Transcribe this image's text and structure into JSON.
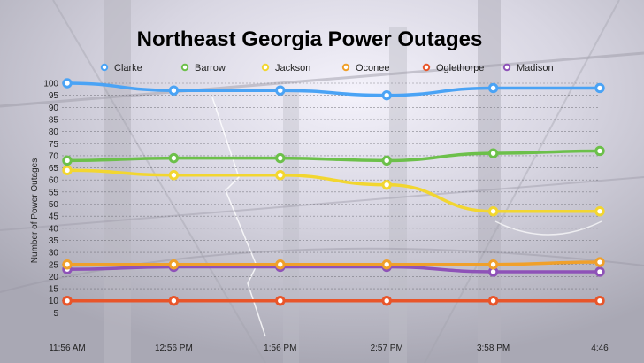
{
  "chart_data": {
    "type": "line",
    "title": "Northeast Georgia Power Outages",
    "xlabel": "",
    "ylabel": "Number of Power Outages",
    "ylim": [
      0,
      100
    ],
    "yticks": [
      5,
      10,
      15,
      20,
      25,
      30,
      35,
      40,
      45,
      50,
      55,
      60,
      65,
      70,
      75,
      80,
      85,
      90,
      95,
      100
    ],
    "grid": true,
    "legend_position": "top",
    "categories": [
      "11:56 AM",
      "12:56 PM",
      "1:56 PM",
      "2:57 PM",
      "3:58 PM",
      "4:46"
    ],
    "series": [
      {
        "name": "Clarke",
        "color": "#4aa3f5",
        "values": [
          100,
          97,
          97,
          95,
          98,
          98
        ]
      },
      {
        "name": "Barrow",
        "color": "#6cc04a",
        "values": [
          68,
          69,
          69,
          68,
          71,
          72
        ]
      },
      {
        "name": "Jackson",
        "color": "#f2d630",
        "values": [
          64,
          62,
          62,
          58,
          47,
          47
        ]
      },
      {
        "name": "Oconee",
        "color": "#f0a02a",
        "values": [
          25,
          25,
          25,
          25,
          25,
          26
        ]
      },
      {
        "name": "Oglethorpe",
        "color": "#e8552a",
        "values": [
          10,
          10,
          10,
          10,
          10,
          10
        ]
      },
      {
        "name": "Madison",
        "color": "#8e52b8",
        "values": [
          23,
          24,
          24,
          24,
          22,
          22
        ]
      }
    ]
  }
}
